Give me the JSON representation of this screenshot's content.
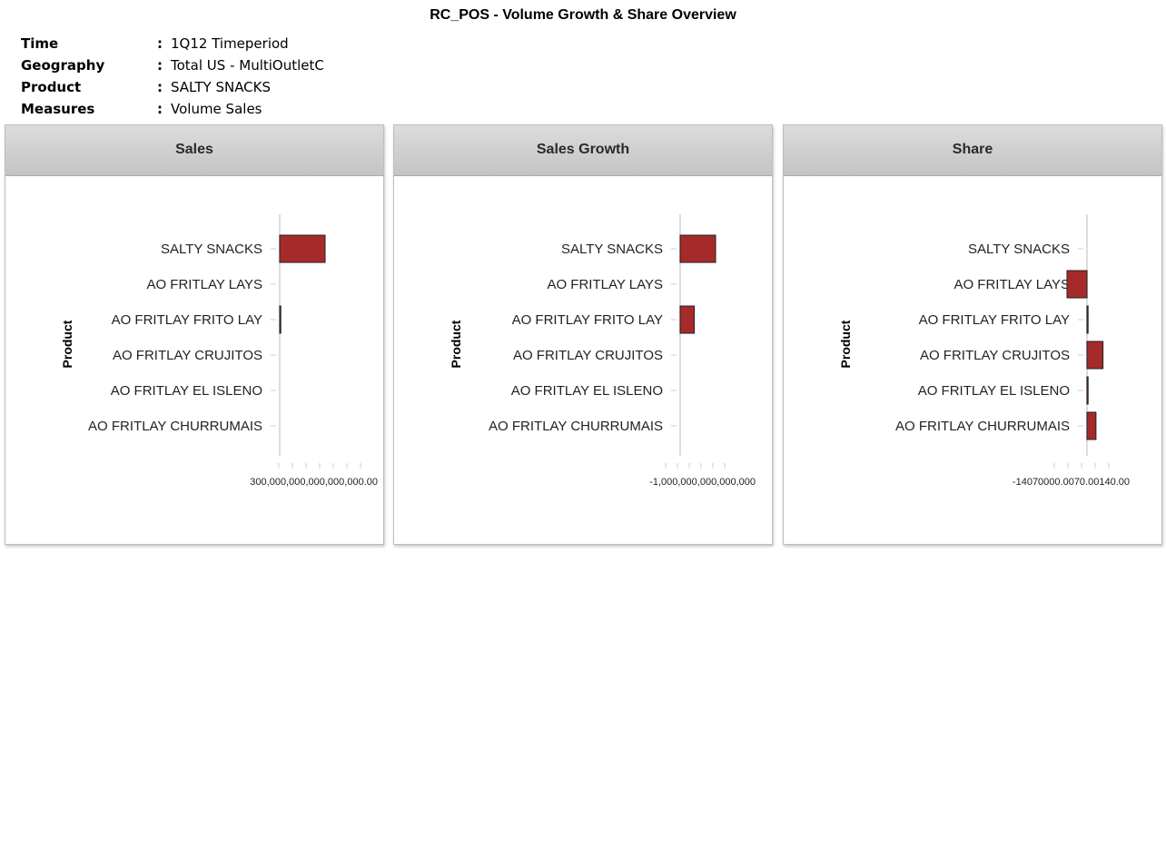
{
  "title": "RC_POS - Volume Growth & Share Overview",
  "filters": [
    {
      "label": "Time",
      "value": "1Q12 Timeperiod"
    },
    {
      "label": "Geography",
      "value": "Total US - MultiOutletC"
    },
    {
      "label": "Product",
      "value": "SALTY SNACKS"
    },
    {
      "label": "Measures",
      "value": "Volume Sales"
    }
  ],
  "colors": {
    "bar": "#a52a2a",
    "bar_border": "#222222",
    "axis": "#dddddd",
    "header_start": "#dcdcdc",
    "header_end": "#c4c4c4"
  },
  "chart_data": [
    {
      "type": "bar",
      "orientation": "horizontal",
      "title": "Sales",
      "ylabel": "Product",
      "categories": [
        "SALTY SNACKS",
        "AO FRITLAY LAYS",
        "AO FRITLAY FRITO LAY",
        "AO FRITLAY CRUJITOS",
        "AO FRITLAY EL ISLENO",
        "AO FRITLAY CHURRUMAIS"
      ],
      "values": [
        1000000000,
        0,
        10000000,
        0,
        0,
        0
      ],
      "xlim": [
        -300000000,
        2000000000
      ],
      "tick_labels": [
        "300,000,000,000,000,000.00"
      ]
    },
    {
      "type": "bar",
      "orientation": "horizontal",
      "title": "Sales Growth",
      "ylabel": "Product",
      "categories": [
        "SALTY SNACKS",
        "AO FRITLAY LAYS",
        "AO FRITLAY FRITO LAY",
        "AO FRITLAY CRUJITOS",
        "AO FRITLAY EL ISLENO",
        "AO FRITLAY CHURRUMAIS"
      ],
      "values": [
        2500000,
        0,
        1000000,
        0,
        0,
        0
      ],
      "xlim": [
        -1000000,
        4500000
      ],
      "tick_labels": [
        "-1,000,000,000,000,000"
      ]
    },
    {
      "type": "bar",
      "orientation": "horizontal",
      "title": "Share",
      "ylabel": "Product",
      "categories": [
        "SALTY SNACKS",
        "AO FRITLAY LAYS",
        "AO FRITLAY FRITO LAY",
        "AO FRITLAY CRUJITOS",
        "AO FRITLAY EL ISLENO",
        "AO FRITLAY CHURRUMAIS"
      ],
      "values": [
        0,
        -100,
        3,
        80,
        1,
        45
      ],
      "xlim": [
        -150,
        130
      ],
      "tick_labels": [
        "-14070000.00",
        "70.00",
        "140.00"
      ]
    }
  ]
}
